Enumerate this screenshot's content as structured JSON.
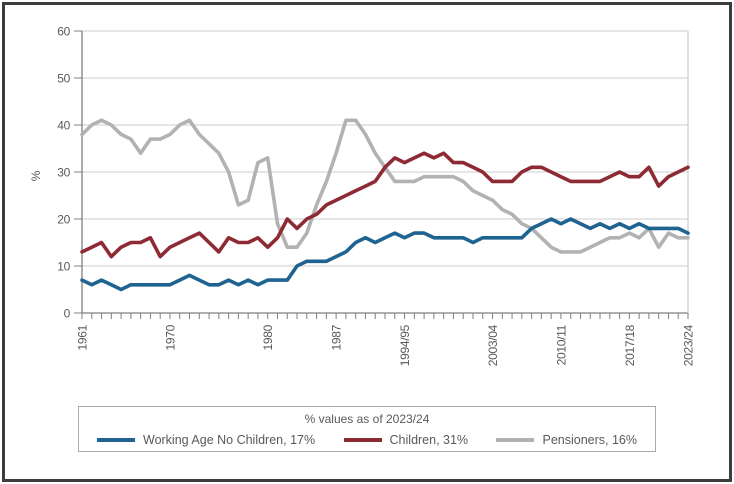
{
  "chart": {
    "legend_title": "% values as of 2023/24",
    "y_axis_title": "%",
    "y_tick_labels": [
      "60",
      "50",
      "40",
      "30",
      "20",
      "10",
      "0"
    ],
    "x_tick_labels": [
      "1961",
      "1970",
      "1980",
      "1987",
      "1994/95",
      "2003/04",
      "2010/11",
      "2017/18",
      "2023/24"
    ]
  },
  "chart_data": {
    "type": "line",
    "title": "",
    "ylabel": "%",
    "ylim": [
      0,
      60
    ],
    "grid": true,
    "legend_title": "% values as of 2023/24",
    "legend_position": "bottom",
    "y_ticks": [
      0,
      10,
      20,
      30,
      40,
      50,
      60
    ],
    "x_tick_labels": [
      "1961",
      "1970",
      "1980",
      "1987",
      "1994/95",
      "2003/04",
      "2010/11",
      "2017/18",
      "2023/24"
    ],
    "colors": {
      "grid": "#cccccc",
      "axis": "#7f7f7f",
      "text": "#595959"
    },
    "categories": [
      "1961",
      "1962",
      "1963",
      "1964",
      "1965",
      "1966",
      "1967",
      "1968",
      "1969",
      "1970",
      "1971",
      "1972",
      "1973",
      "1974",
      "1975",
      "1976",
      "1977",
      "1978",
      "1979",
      "1980",
      "1981",
      "1982",
      "1983",
      "1984",
      "1985",
      "1986",
      "1987",
      "1988",
      "1989",
      "1990",
      "1991",
      "1992",
      "1993",
      "1994/95",
      "1995/96",
      "1996/97",
      "1997/98",
      "1998/99",
      "1999/00",
      "2000/01",
      "2001/02",
      "2002/03",
      "2003/04",
      "2004/05",
      "2005/06",
      "2006/07",
      "2007/08",
      "2008/09",
      "2009/10",
      "2010/11",
      "2011/12",
      "2012/13",
      "2013/14",
      "2014/15",
      "2015/16",
      "2016/17",
      "2017/18",
      "2018/19",
      "2019/20",
      "2020/21",
      "2021/22",
      "2022/23",
      "2023/24"
    ],
    "series": [
      {
        "name": "Working Age No Children",
        "label": "Working Age No Children, 17%",
        "final_value": "17%",
        "color": "#1f6390",
        "values": [
          7,
          6,
          7,
          6,
          5,
          6,
          6,
          6,
          6,
          6,
          7,
          8,
          7,
          6,
          6,
          7,
          6,
          7,
          6,
          7,
          7,
          7,
          10,
          11,
          11,
          11,
          12,
          13,
          15,
          16,
          15,
          16,
          17,
          16,
          17,
          17,
          16,
          16,
          16,
          16,
          15,
          16,
          16,
          16,
          16,
          16,
          18,
          19,
          20,
          19,
          20,
          19,
          18,
          19,
          18,
          19,
          18,
          19,
          18,
          18,
          18,
          18,
          17
        ]
      },
      {
        "name": "Children",
        "label": "Children, 31%",
        "final_value": "31%",
        "color": "#8e2a33",
        "values": [
          13,
          14,
          15,
          12,
          14,
          15,
          15,
          16,
          12,
          14,
          15,
          16,
          17,
          15,
          13,
          16,
          15,
          15,
          16,
          14,
          16,
          20,
          18,
          20,
          21,
          23,
          24,
          25,
          26,
          27,
          28,
          31,
          33,
          32,
          33,
          34,
          33,
          34,
          32,
          32,
          31,
          30,
          28,
          28,
          28,
          30,
          31,
          31,
          30,
          29,
          28,
          28,
          28,
          28,
          29,
          30,
          29,
          29,
          31,
          27,
          29,
          30,
          31
        ]
      },
      {
        "name": "Pensioners",
        "label": "Pensioners, 16%",
        "final_value": "16%",
        "color": "#b2b2b2",
        "values": [
          38,
          40,
          41,
          40,
          38,
          37,
          34,
          37,
          37,
          38,
          40,
          41,
          38,
          36,
          34,
          30,
          23,
          24,
          32,
          33,
          19,
          14,
          14,
          17,
          23,
          28,
          34,
          41,
          41,
          38,
          34,
          31,
          28,
          28,
          28,
          29,
          29,
          29,
          29,
          28,
          26,
          25,
          24,
          22,
          21,
          19,
          18,
          16,
          14,
          13,
          13,
          13,
          14,
          15,
          16,
          16,
          17,
          16,
          18,
          14,
          17,
          16,
          16
        ]
      }
    ]
  }
}
